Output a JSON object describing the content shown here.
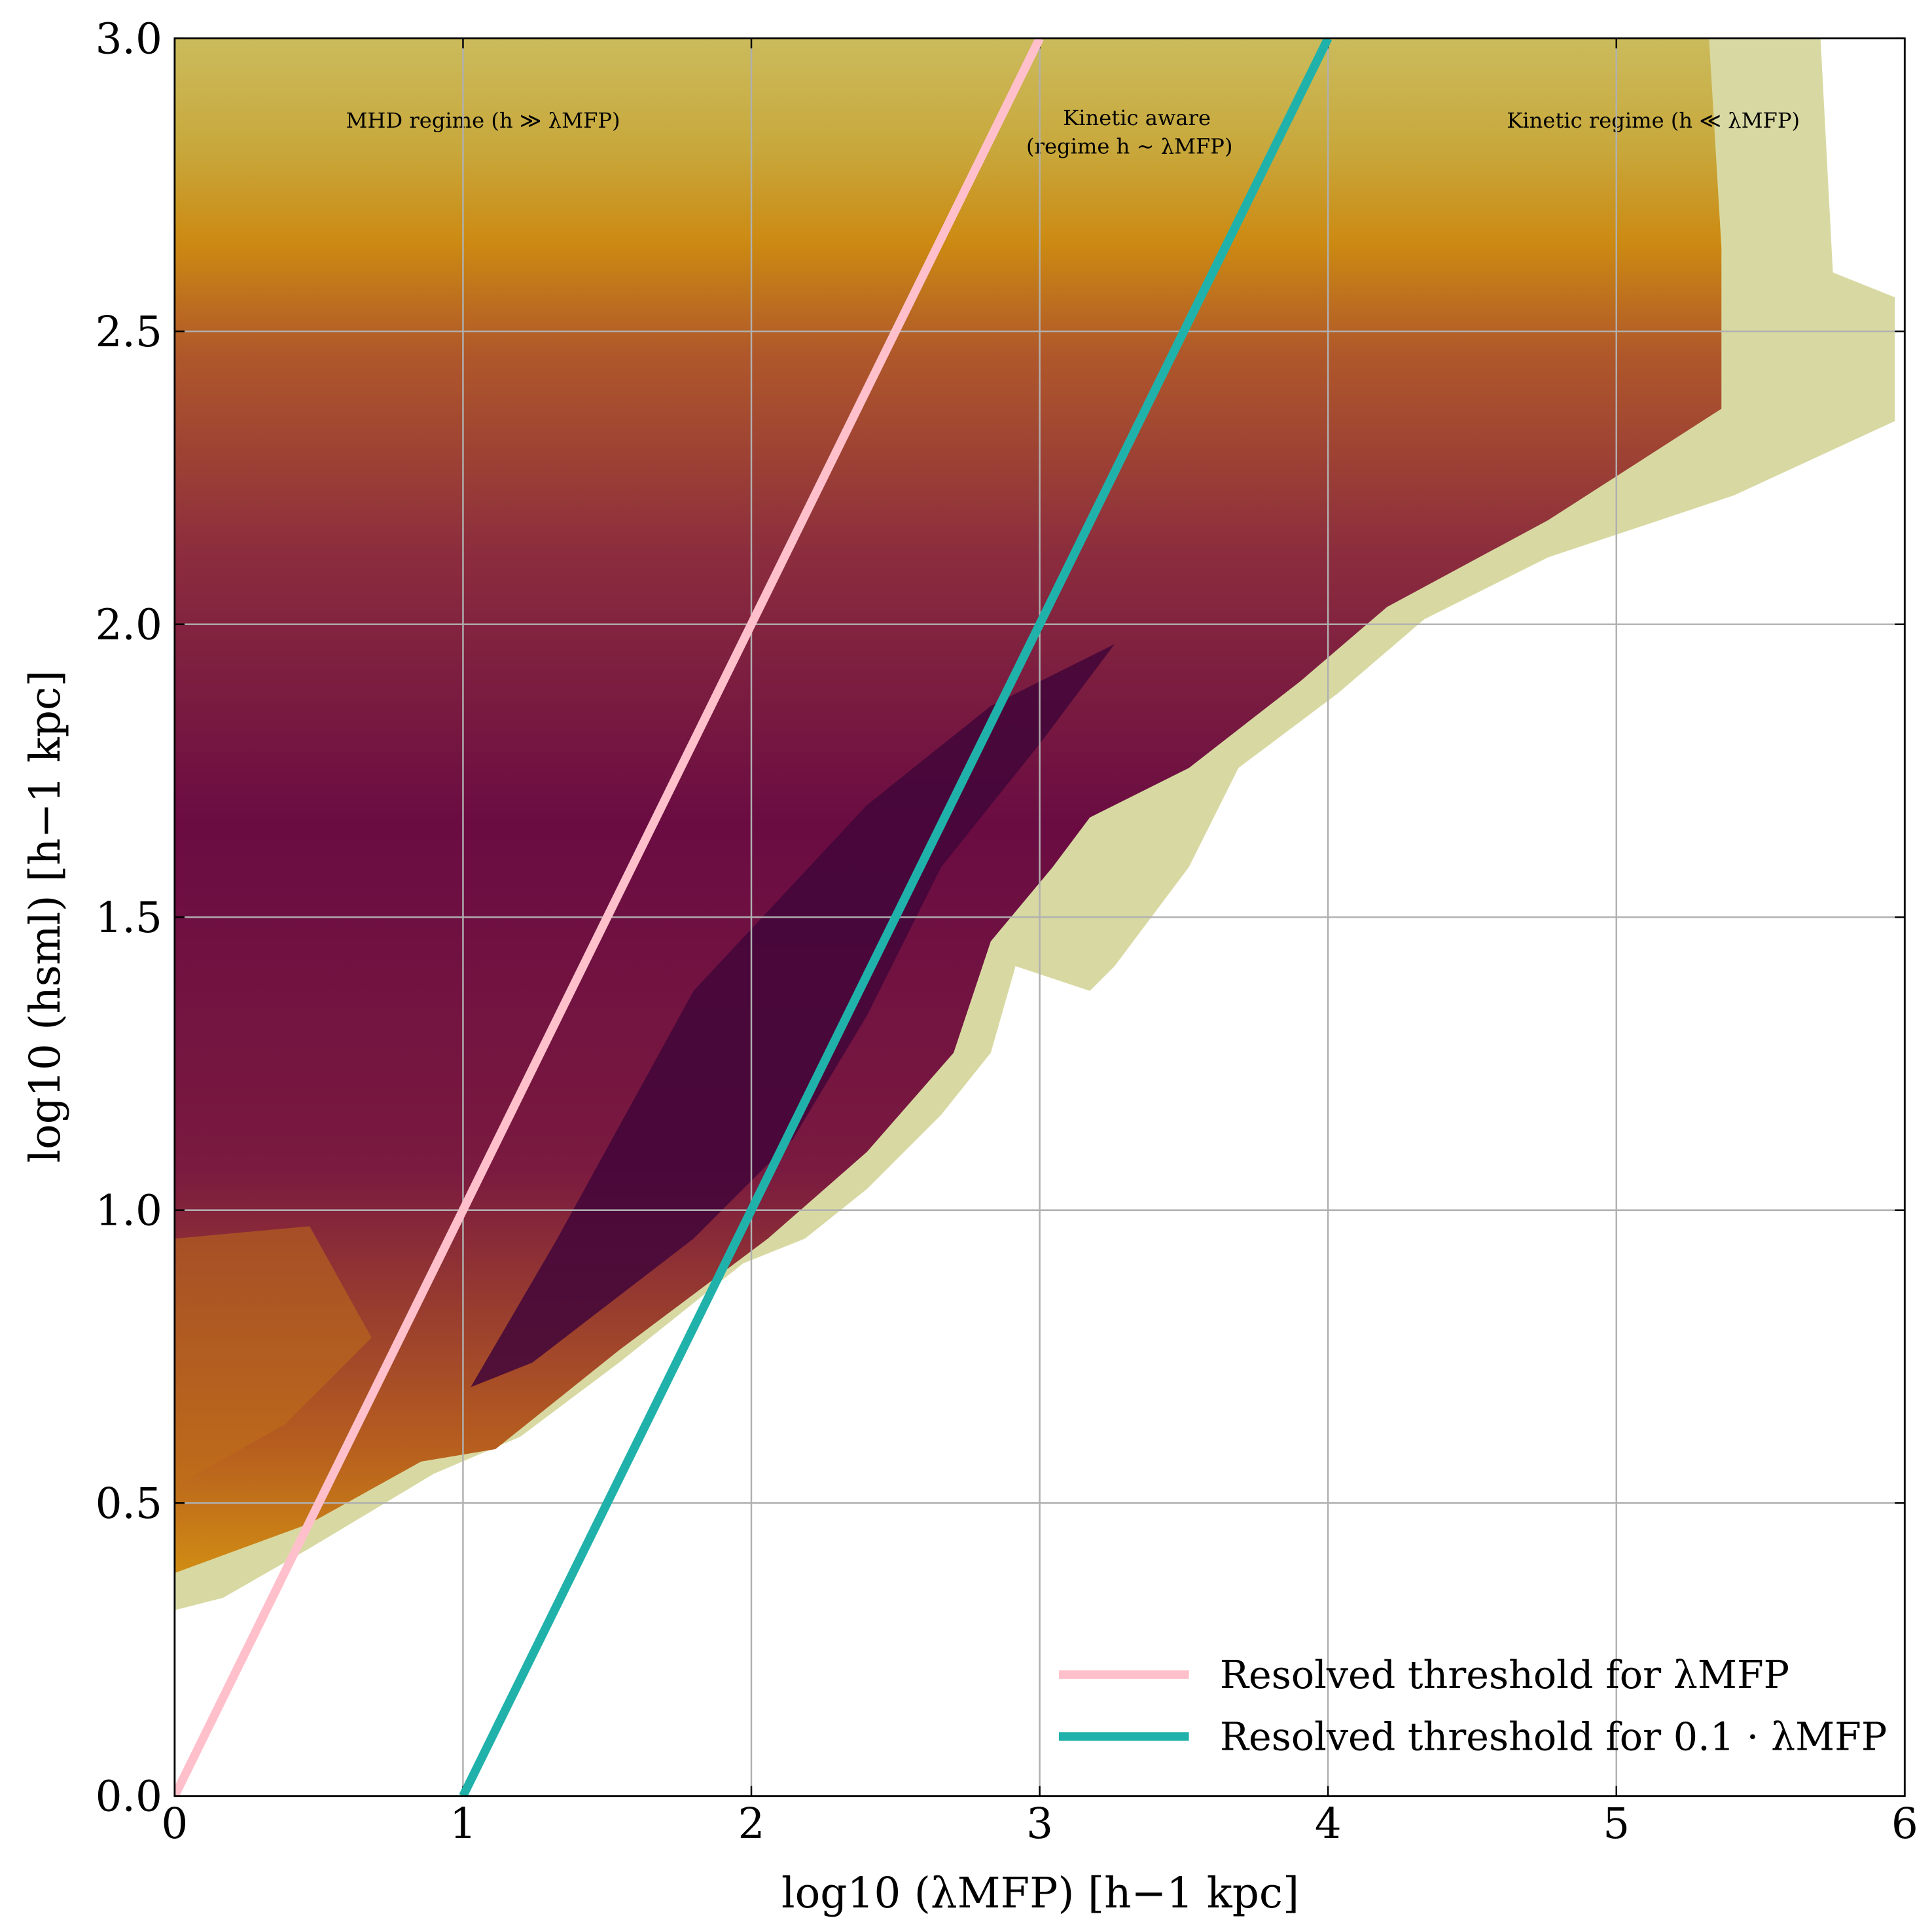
{
  "chart_data": {
    "type": "line",
    "xlabel": "log10 (λMFP) [h−1 kpc]",
    "ylabel": "log10 (hsml) [h−1 kpc]",
    "annotations": [
      "MHD regime (h ≫ λMFP)",
      "Kinetic aware",
      "(regime h ∼ λMFP)",
      "Kinetic regime (h ≪ λMFP)"
    ],
    "series": [
      {
        "name": "Resolved threshold for λMFP",
        "color": "#ffc0cb",
        "x": [
          0,
          3
        ],
        "values": [
          0,
          3
        ]
      },
      {
        "name": "Resolved threshold for 0.1 · λMFP",
        "color": "#20b2aa",
        "x": [
          1,
          4
        ],
        "values": [
          0,
          3
        ]
      }
    ],
    "xlim": [
      0,
      6
    ],
    "ylim": [
      0,
      3
    ],
    "xticks": [
      0,
      1,
      2,
      3,
      4,
      5,
      6
    ],
    "yticks": [
      {
        "value": 0,
        "label": "0.0"
      },
      0.5,
      {
        "value": 1,
        "label": "1.0"
      },
      1.5,
      {
        "value": 2,
        "label": "2.0"
      },
      2.5,
      {
        "value": 3,
        "label": "3.0"
      }
    ],
    "grid": true,
    "legend": "lower right"
  }
}
